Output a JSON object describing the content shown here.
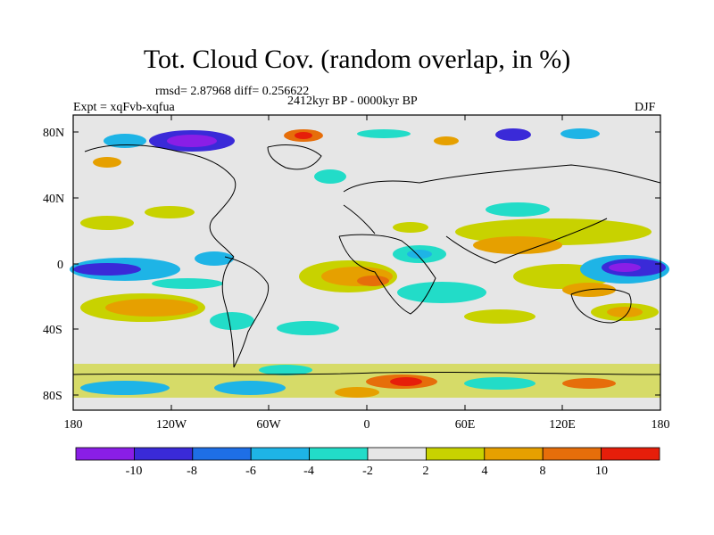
{
  "title": "Tot. Cloud Cov. (random overlap, in %)",
  "stats": "rmsd= 2.87968 diff= 0.256622",
  "period": "2412kyr BP - 0000kyr BP",
  "experiment": "Expt = xqFvb-xqfua",
  "season": "DJF",
  "axes": {
    "lat_labels": [
      "80N",
      "40N",
      "0",
      "40S",
      "80S"
    ],
    "lon_labels": [
      "180",
      "120W",
      "60W",
      "0",
      "60E",
      "120E",
      "180"
    ]
  },
  "colorbar": {
    "labels": [
      "-10",
      "-8",
      "-6",
      "-4",
      "-2",
      "2",
      "4",
      "8",
      "10"
    ],
    "colors": [
      "#8a1ee6",
      "#3a2ad8",
      "#1e6fe6",
      "#1eb4e6",
      "#22dcc8",
      "#e6e6e6",
      "#c8d200",
      "#e6a000",
      "#e66e0a",
      "#e61e0a"
    ]
  },
  "colors": {
    "background": "#e6e6e6",
    "coast": "#000000"
  }
}
